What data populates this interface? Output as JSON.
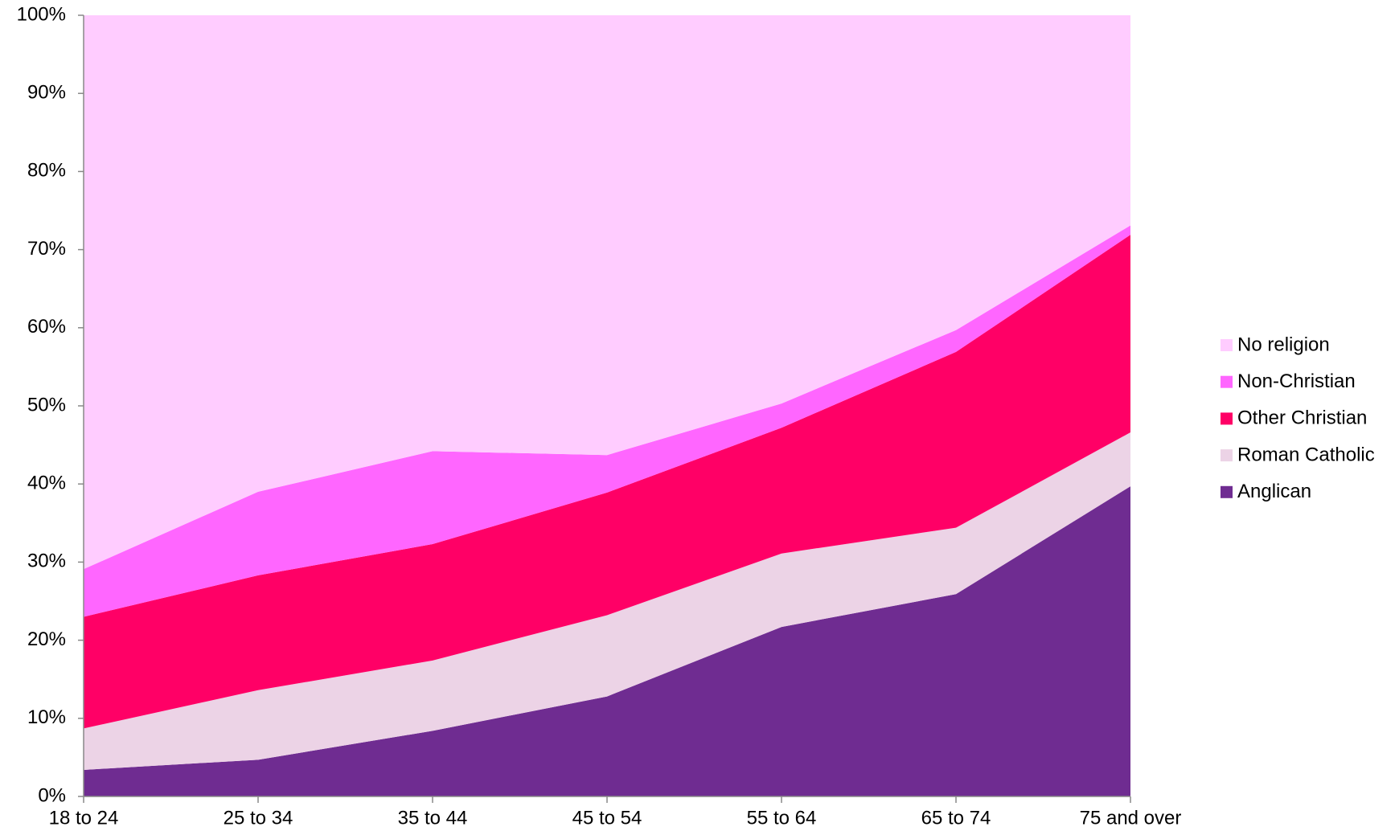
{
  "chart_data": {
    "type": "stacked_area",
    "categories": [
      "18 to 24",
      "25 to 34",
      "35 to 44",
      "45 to 54",
      "55 to 64",
      "65 to 74",
      "75 and over"
    ],
    "series": [
      {
        "name": "Anglican",
        "color": "#6f2c91",
        "values": [
          3.4,
          4.7,
          8.4,
          12.8,
          21.7,
          25.9,
          39.7
        ]
      },
      {
        "name": "Roman Catholic",
        "color": "#ecd3e6",
        "values": [
          5.3,
          8.9,
          9.0,
          10.4,
          9.4,
          8.5,
          6.9
        ]
      },
      {
        "name": "Other Christian",
        "color": "#ff0066",
        "values": [
          14.3,
          14.7,
          14.9,
          15.7,
          16.1,
          22.5,
          25.3
        ]
      },
      {
        "name": "Non-Christian",
        "color": "#ff66ff",
        "values": [
          6.1,
          10.7,
          11.9,
          4.8,
          3.1,
          2.8,
          1.2
        ]
      },
      {
        "name": "No religion",
        "color": "#ffccff",
        "values": [
          70.9,
          61.0,
          55.8,
          56.3,
          49.7,
          40.3,
          26.9
        ]
      }
    ],
    "ylim": [
      0,
      100
    ],
    "yticks": [
      {
        "value": 0,
        "label": "0%"
      },
      {
        "value": 10,
        "label": "10%"
      },
      {
        "value": 20,
        "label": "20%"
      },
      {
        "value": 30,
        "label": "30%"
      },
      {
        "value": 40,
        "label": "40%"
      },
      {
        "value": 50,
        "label": "50%"
      },
      {
        "value": 60,
        "label": "60%"
      },
      {
        "value": 70,
        "label": "70%"
      },
      {
        "value": 80,
        "label": "80%"
      },
      {
        "value": 90,
        "label": "90%"
      },
      {
        "value": 100,
        "label": "100%"
      }
    ],
    "legend": "right"
  }
}
